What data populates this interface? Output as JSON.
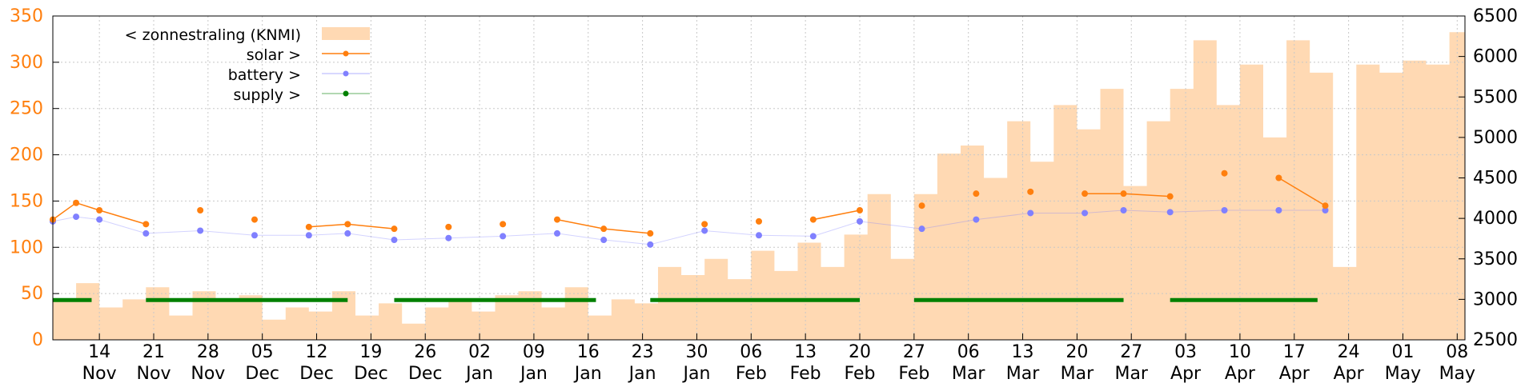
{
  "chart_data": {
    "type": "line",
    "colors": {
      "solar": "#ff7f0e",
      "battery": "#8080ff",
      "supply": "#008000",
      "zonnestraling": "#ffd9b3",
      "left_axis": "#ff7f0e",
      "grid": "#c8c8c8"
    },
    "y_left": {
      "ticks": [
        0,
        50,
        100,
        150,
        200,
        250,
        300,
        350
      ],
      "ylim": [
        0,
        350
      ]
    },
    "y_right": {
      "ticks": [
        2500,
        3000,
        3500,
        4000,
        4500,
        5000,
        5500,
        6000,
        6500
      ],
      "ylim": [
        2500,
        6500
      ]
    },
    "x_ticks": [
      {
        "day": "14",
        "month": "Nov",
        "date": "2022-11-14"
      },
      {
        "day": "21",
        "month": "Nov",
        "date": "2022-11-21"
      },
      {
        "day": "28",
        "month": "Nov",
        "date": "2022-11-28"
      },
      {
        "day": "05",
        "month": "Dec",
        "date": "2022-12-05"
      },
      {
        "day": "12",
        "month": "Dec",
        "date": "2022-12-12"
      },
      {
        "day": "19",
        "month": "Dec",
        "date": "2022-12-19"
      },
      {
        "day": "26",
        "month": "Dec",
        "date": "2022-12-26"
      },
      {
        "day": "02",
        "month": "Jan",
        "date": "2023-01-02"
      },
      {
        "day": "09",
        "month": "Jan",
        "date": "2023-01-09"
      },
      {
        "day": "16",
        "month": "Jan",
        "date": "2023-01-16"
      },
      {
        "day": "23",
        "month": "Jan",
        "date": "2023-01-23"
      },
      {
        "day": "30",
        "month": "Jan",
        "date": "2023-01-30"
      },
      {
        "day": "06",
        "month": "Feb",
        "date": "2023-02-06"
      },
      {
        "day": "13",
        "month": "Feb",
        "date": "2023-02-13"
      },
      {
        "day": "20",
        "month": "Feb",
        "date": "2023-02-20"
      },
      {
        "day": "27",
        "month": "Feb",
        "date": "2023-02-27"
      },
      {
        "day": "06",
        "month": "Mar",
        "date": "2023-03-06"
      },
      {
        "day": "13",
        "month": "Mar",
        "date": "2023-03-13"
      },
      {
        "day": "20",
        "month": "Mar",
        "date": "2023-03-20"
      },
      {
        "day": "27",
        "month": "Mar",
        "date": "2023-03-27"
      },
      {
        "day": "03",
        "month": "Apr",
        "date": "2023-04-03"
      },
      {
        "day": "10",
        "month": "Apr",
        "date": "2023-04-10"
      },
      {
        "day": "17",
        "month": "Apr",
        "date": "2023-04-17"
      },
      {
        "day": "24",
        "month": "Apr",
        "date": "2023-04-24"
      },
      {
        "day": "01",
        "month": "May",
        "date": "2023-05-01"
      },
      {
        "day": "08",
        "month": "May",
        "date": "2023-05-08"
      }
    ],
    "xlim": [
      "2022-11-08",
      "2023-05-09"
    ],
    "grid": true,
    "legend_position": "top-left",
    "series": [
      {
        "name": "< zonnestraling (KNMI)",
        "kind": "area",
        "axis": "right",
        "dates": [
          "2022-11-08",
          "2022-11-11",
          "2022-11-14",
          "2022-11-17",
          "2022-11-20",
          "2022-11-23",
          "2022-11-26",
          "2022-11-29",
          "2022-12-02",
          "2022-12-05",
          "2022-12-08",
          "2022-12-11",
          "2022-12-14",
          "2022-12-17",
          "2022-12-20",
          "2022-12-23",
          "2022-12-26",
          "2022-12-29",
          "2023-01-01",
          "2023-01-04",
          "2023-01-07",
          "2023-01-10",
          "2023-01-13",
          "2023-01-16",
          "2023-01-19",
          "2023-01-22",
          "2023-01-25",
          "2023-01-28",
          "2023-01-31",
          "2023-02-03",
          "2023-02-06",
          "2023-02-09",
          "2023-02-12",
          "2023-02-15",
          "2023-02-18",
          "2023-02-21",
          "2023-02-24",
          "2023-02-27",
          "2023-03-02",
          "2023-03-05",
          "2023-03-08",
          "2023-03-11",
          "2023-03-14",
          "2023-03-17",
          "2023-03-20",
          "2023-03-23",
          "2023-03-26",
          "2023-03-29",
          "2023-04-01",
          "2023-04-04",
          "2023-04-07",
          "2023-04-10",
          "2023-04-13",
          "2023-04-16",
          "2023-04-19",
          "2023-04-22",
          "2023-04-25",
          "2023-04-28",
          "2023-05-01",
          "2023-05-04",
          "2023-05-07",
          "2023-05-09"
        ],
        "values": [
          3000,
          3200,
          2900,
          3000,
          3150,
          2800,
          3100,
          3000,
          3050,
          2750,
          2900,
          2850,
          3100,
          2800,
          2950,
          2700,
          2900,
          3000,
          2850,
          3050,
          3100,
          2900,
          3150,
          2800,
          3000,
          2950,
          3400,
          3300,
          3500,
          3250,
          3600,
          3350,
          3700,
          3400,
          3800,
          4300,
          3500,
          4300,
          4800,
          4900,
          4500,
          5200,
          4700,
          5400,
          5100,
          5600,
          4400,
          5200,
          5600,
          6200,
          5400,
          5900,
          5000,
          6200,
          5800,
          3400,
          5900,
          5800,
          5950,
          5900,
          6300,
          5500
        ]
      },
      {
        "name": "solar >",
        "kind": "line",
        "axis": "left",
        "dates": [
          "2022-11-08",
          "2022-11-11",
          "2022-11-14",
          "2022-11-20",
          "2022-11-27",
          "2022-12-04",
          "2022-12-11",
          "2022-12-16",
          "2022-12-22",
          "2022-12-29",
          "2023-01-05",
          "2023-01-12",
          "2023-01-18",
          "2023-01-24",
          "2023-01-31",
          "2023-02-07",
          "2023-02-14",
          "2023-02-20",
          "2023-02-28",
          "2023-03-07",
          "2023-03-14",
          "2023-03-21",
          "2023-03-26",
          "2023-04-01",
          "2023-04-08",
          "2023-04-15",
          "2023-04-21"
        ],
        "values": [
          130,
          148,
          140,
          125,
          140,
          130,
          122,
          125,
          120,
          122,
          125,
          130,
          120,
          115,
          125,
          128,
          130,
          140,
          145,
          158,
          160,
          158,
          158,
          155,
          180,
          175,
          145
        ]
      },
      {
        "name": "battery >",
        "kind": "line",
        "axis": "left",
        "dates": [
          "2022-11-08",
          "2022-11-11",
          "2022-11-14",
          "2022-11-20",
          "2022-11-27",
          "2022-12-04",
          "2022-12-11",
          "2022-12-16",
          "2022-12-22",
          "2022-12-29",
          "2023-01-05",
          "2023-01-12",
          "2023-01-18",
          "2023-01-24",
          "2023-01-31",
          "2023-02-07",
          "2023-02-14",
          "2023-02-20",
          "2023-02-28",
          "2023-03-07",
          "2023-03-14",
          "2023-03-21",
          "2023-03-26",
          "2023-04-01",
          "2023-04-08",
          "2023-04-15",
          "2023-04-21"
        ],
        "values": [
          128,
          133,
          130,
          115,
          118,
          113,
          113,
          115,
          108,
          110,
          112,
          115,
          108,
          103,
          118,
          113,
          112,
          128,
          120,
          130,
          137,
          137,
          140,
          138,
          140,
          140,
          140
        ]
      },
      {
        "name": "supply >",
        "kind": "segments",
        "axis": "left",
        "value": 43,
        "segments": [
          [
            "2022-11-08",
            "2022-11-13"
          ],
          [
            "2022-11-20",
            "2022-12-16"
          ],
          [
            "2022-12-22",
            "2023-01-17"
          ],
          [
            "2023-01-24",
            "2023-02-20"
          ],
          [
            "2023-02-27",
            "2023-03-26"
          ],
          [
            "2023-04-01",
            "2023-04-20"
          ]
        ]
      }
    ]
  }
}
